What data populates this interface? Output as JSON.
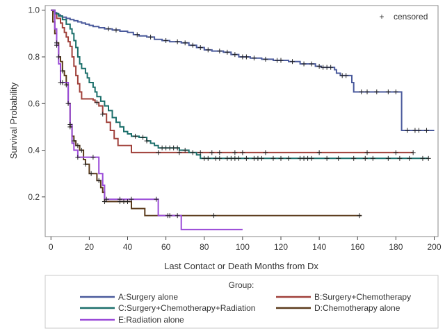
{
  "chart_data": {
    "type": "line",
    "subtype": "kaplan-meier step",
    "xlabel": "Last Contact or Death Months from Dx",
    "ylabel": "Survival Probability",
    "xlim": [
      -3,
      202
    ],
    "ylim": [
      0.03,
      1.02
    ],
    "xticks": [
      0,
      20,
      40,
      60,
      80,
      100,
      120,
      140,
      160,
      180,
      200
    ],
    "yticks": [
      0.2,
      0.4,
      0.6,
      0.8,
      1.0
    ],
    "ytick_labels": [
      "0.2",
      "0.4",
      "0.6",
      "0.8",
      "1.0"
    ],
    "censored_marker": "+",
    "censored_label": "censored",
    "legend_title": "Group:",
    "series": [
      {
        "name": "A:Surgery alone",
        "color": "#4a5a9c",
        "steps": [
          [
            0,
            1.0
          ],
          [
            1,
            0.995
          ],
          [
            2,
            0.99
          ],
          [
            3,
            0.985
          ],
          [
            4,
            0.98
          ],
          [
            5,
            0.975
          ],
          [
            6,
            0.97
          ],
          [
            8,
            0.965
          ],
          [
            10,
            0.96
          ],
          [
            12,
            0.955
          ],
          [
            14,
            0.95
          ],
          [
            16,
            0.945
          ],
          [
            18,
            0.94
          ],
          [
            20,
            0.935
          ],
          [
            22,
            0.93
          ],
          [
            25,
            0.925
          ],
          [
            28,
            0.92
          ],
          [
            32,
            0.915
          ],
          [
            36,
            0.91
          ],
          [
            40,
            0.905
          ],
          [
            43,
            0.895
          ],
          [
            46,
            0.89
          ],
          [
            50,
            0.885
          ],
          [
            54,
            0.875
          ],
          [
            58,
            0.87
          ],
          [
            62,
            0.865
          ],
          [
            68,
            0.86
          ],
          [
            72,
            0.85
          ],
          [
            76,
            0.84
          ],
          [
            80,
            0.83
          ],
          [
            84,
            0.825
          ],
          [
            90,
            0.82
          ],
          [
            94,
            0.81
          ],
          [
            98,
            0.8
          ],
          [
            104,
            0.795
          ],
          [
            110,
            0.79
          ],
          [
            116,
            0.785
          ],
          [
            124,
            0.78
          ],
          [
            130,
            0.77
          ],
          [
            138,
            0.76
          ],
          [
            141,
            0.755
          ],
          [
            148,
            0.745
          ],
          [
            149,
            0.73
          ],
          [
            151,
            0.72
          ],
          [
            157,
            0.69
          ],
          [
            158,
            0.65
          ],
          [
            183,
            0.65
          ],
          [
            183,
            0.485
          ],
          [
            200,
            0.485
          ]
        ],
        "censored": [
          30,
          34,
          45,
          52,
          60,
          66,
          70,
          74,
          78,
          82,
          88,
          92,
          96,
          100,
          102,
          106,
          112,
          118,
          120,
          126,
          132,
          136,
          140,
          142,
          144,
          146,
          152,
          154,
          162,
          165,
          170,
          176,
          180,
          186,
          190,
          192,
          196
        ]
      },
      {
        "name": "B:Surgery+Chemotherapy",
        "color": "#a0403a",
        "steps": [
          [
            0,
            1.0
          ],
          [
            2,
            0.985
          ],
          [
            3,
            0.965
          ],
          [
            5,
            0.945
          ],
          [
            6,
            0.925
          ],
          [
            7,
            0.905
          ],
          [
            8,
            0.885
          ],
          [
            9,
            0.865
          ],
          [
            10,
            0.845
          ],
          [
            11,
            0.8
          ],
          [
            12,
            0.76
          ],
          [
            13,
            0.72
          ],
          [
            14,
            0.685
          ],
          [
            15,
            0.65
          ],
          [
            16,
            0.62
          ],
          [
            22,
            0.615
          ],
          [
            23,
            0.605
          ],
          [
            25,
            0.59
          ],
          [
            27,
            0.555
          ],
          [
            29,
            0.52
          ],
          [
            31,
            0.485
          ],
          [
            33,
            0.45
          ],
          [
            35,
            0.42
          ],
          [
            42,
            0.42
          ],
          [
            42,
            0.39
          ],
          [
            100,
            0.39
          ],
          [
            189,
            0.39
          ]
        ],
        "censored": [
          24,
          27,
          56,
          67,
          78,
          84,
          88,
          96,
          100,
          112,
          140,
          165,
          180,
          189
        ]
      },
      {
        "name": "C:Surgery+Chemotherapy+Radiation",
        "color": "#1a6e6a",
        "steps": [
          [
            0,
            1.0
          ],
          [
            2,
            0.985
          ],
          [
            4,
            0.975
          ],
          [
            6,
            0.96
          ],
          [
            8,
            0.94
          ],
          [
            10,
            0.92
          ],
          [
            11,
            0.9
          ],
          [
            12,
            0.87
          ],
          [
            13,
            0.84
          ],
          [
            14,
            0.8
          ],
          [
            15,
            0.77
          ],
          [
            16,
            0.75
          ],
          [
            18,
            0.73
          ],
          [
            19,
            0.71
          ],
          [
            20,
            0.69
          ],
          [
            22,
            0.67
          ],
          [
            23,
            0.65
          ],
          [
            24,
            0.63
          ],
          [
            26,
            0.61
          ],
          [
            28,
            0.59
          ],
          [
            30,
            0.57
          ],
          [
            32,
            0.54
          ],
          [
            34,
            0.52
          ],
          [
            36,
            0.5
          ],
          [
            38,
            0.48
          ],
          [
            40,
            0.47
          ],
          [
            42,
            0.46
          ],
          [
            46,
            0.455
          ],
          [
            50,
            0.44
          ],
          [
            52,
            0.43
          ],
          [
            54,
            0.42
          ],
          [
            56,
            0.41
          ],
          [
            66,
            0.41
          ],
          [
            67,
            0.4
          ],
          [
            72,
            0.39
          ],
          [
            76,
            0.38
          ],
          [
            78,
            0.365
          ],
          [
            100,
            0.365
          ],
          [
            197,
            0.365
          ]
        ],
        "censored": [
          44,
          48,
          50,
          58,
          60,
          62,
          64,
          66,
          70,
          74,
          80,
          82,
          86,
          88,
          92,
          94,
          96,
          98,
          102,
          106,
          108,
          110,
          116,
          120,
          124,
          130,
          132,
          134,
          136,
          144,
          150,
          158,
          164,
          168,
          176,
          182,
          187,
          194,
          197
        ]
      },
      {
        "name": "D:Chemotherapy alone",
        "color": "#5a3a1a",
        "steps": [
          [
            0,
            1.0
          ],
          [
            1,
            0.95
          ],
          [
            2,
            0.9
          ],
          [
            3,
            0.86
          ],
          [
            4,
            0.8
          ],
          [
            5,
            0.78
          ],
          [
            6,
            0.74
          ],
          [
            7,
            0.72
          ],
          [
            8,
            0.68
          ],
          [
            9,
            0.6
          ],
          [
            10,
            0.5
          ],
          [
            11,
            0.46
          ],
          [
            12,
            0.44
          ],
          [
            13,
            0.42
          ],
          [
            15,
            0.4
          ],
          [
            17,
            0.36
          ],
          [
            18,
            0.34
          ],
          [
            20,
            0.3
          ],
          [
            24,
            0.27
          ],
          [
            26,
            0.24
          ],
          [
            27,
            0.22
          ],
          [
            28,
            0.18
          ],
          [
            40,
            0.18
          ],
          [
            42,
            0.15
          ],
          [
            49,
            0.12
          ],
          [
            100,
            0.12
          ],
          [
            162,
            0.12
          ]
        ],
        "censored": [
          3,
          4,
          6,
          8,
          9,
          10,
          12,
          14,
          16,
          18,
          21,
          25,
          28,
          36,
          38,
          40,
          61,
          62,
          85,
          161
        ]
      },
      {
        "name": "E:Radiation alone",
        "color": "#9a4ad8",
        "steps": [
          [
            0,
            1.0
          ],
          [
            2,
            0.92
          ],
          [
            3,
            0.85
          ],
          [
            4,
            0.77
          ],
          [
            5,
            0.69
          ],
          [
            8,
            0.69
          ],
          [
            9,
            0.6
          ],
          [
            10,
            0.51
          ],
          [
            11,
            0.43
          ],
          [
            12,
            0.4
          ],
          [
            14,
            0.37
          ],
          [
            25,
            0.37
          ],
          [
            25,
            0.3
          ],
          [
            27,
            0.25
          ],
          [
            28,
            0.19
          ],
          [
            56,
            0.19
          ],
          [
            56,
            0.12
          ],
          [
            68,
            0.12
          ],
          [
            68,
            0.06
          ],
          [
            100,
            0.06
          ]
        ],
        "censored": [
          3,
          5,
          6,
          10,
          14,
          22,
          29,
          36,
          42,
          55,
          66
        ]
      }
    ]
  }
}
